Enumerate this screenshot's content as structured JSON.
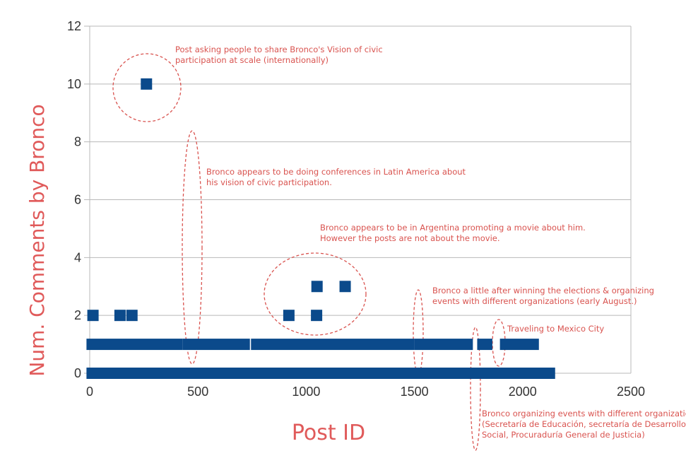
{
  "chart_data": {
    "type": "scatter",
    "xlabel": "Post ID",
    "ylabel": "Num. Comments by Bronco",
    "xlim": [
      0,
      2500
    ],
    "ylim": [
      0,
      12
    ],
    "x_ticks": [
      "0",
      "500",
      "1000",
      "1500",
      "2000",
      "2500"
    ],
    "y_ticks": [
      "0",
      "2",
      "4",
      "6",
      "8",
      "10",
      "12"
    ],
    "grid": "horizontal",
    "colors": {
      "points": "#0b4a8b",
      "annotations": "#d9534f",
      "axis_titles": "#e05a5a"
    },
    "points": [
      {
        "x": 262,
        "y": 10
      },
      {
        "x": 15,
        "y": 2
      },
      {
        "x": 140,
        "y": 2
      },
      {
        "x": 195,
        "y": 2
      },
      {
        "x": 920,
        "y": 2
      },
      {
        "x": 1048,
        "y": 2
      },
      {
        "x": 1050,
        "y": 3
      },
      {
        "x": 1180,
        "y": 3
      }
    ],
    "bands": [
      {
        "y": 1,
        "x_start": -15,
        "x_end": 430
      },
      {
        "y": 1,
        "x_start": 430,
        "x_end": 740
      },
      {
        "y": 1,
        "x_start": 745,
        "x_end": 1500
      },
      {
        "y": 1,
        "x_start": 1500,
        "x_end": 1770
      },
      {
        "y": 1,
        "x_start": 1790,
        "x_end": 1860
      },
      {
        "y": 1,
        "x_start": 1895,
        "x_end": 2075
      },
      {
        "y": 0,
        "x_start": -15,
        "x_end": 2150
      }
    ],
    "annotations": [
      {
        "lines": [
          "Post asking people to share  Bronco's Vision of civic",
          "participation at scale (internationally)"
        ]
      },
      {
        "lines": [
          "Bronco appears to be doing conferences in Latin America about",
          "his vision of civic participation."
        ]
      },
      {
        "lines": [
          "Bronco appears to be in Argentina promoting a movie about him.",
          "However the posts are not about the movie."
        ]
      },
      {
        "lines": [
          "Bronco a little after winning the elections & organizing",
          "events with different organizations (early August.)"
        ]
      },
      {
        "lines": [
          "Traveling to Mexico City"
        ]
      },
      {
        "lines": [
          "Bronco organizing events with different organizations",
          "(Secretaría de Educación, secretaría de Desarrollo",
          "Social, Procuraduría General de Justicia)"
        ]
      }
    ]
  }
}
